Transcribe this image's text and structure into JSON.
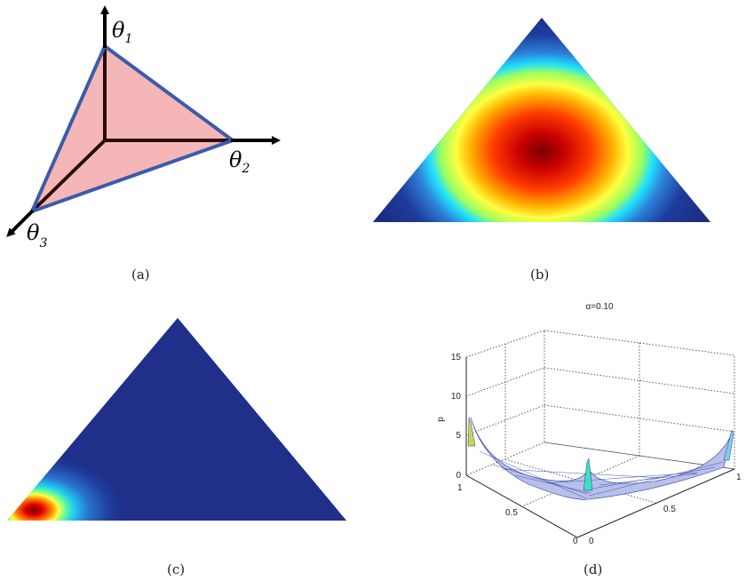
{
  "panels": {
    "a": {
      "caption": "(a)",
      "axes": {
        "theta1": {
          "symbol": "θ",
          "sub": "1"
        },
        "theta2": {
          "symbol": "θ",
          "sub": "2"
        },
        "theta3": {
          "symbol": "θ",
          "sub": "3"
        }
      },
      "colors": {
        "simplex_fill": "#f4b6b6",
        "simplex_edge": "#3b5bab",
        "axis": "#000000"
      }
    },
    "b": {
      "caption": "(b)"
    },
    "c": {
      "caption": "(c)"
    },
    "d": {
      "caption": "(d)",
      "title": "α=0.10",
      "zlabel": "p",
      "z_ticks": [
        "0",
        "5",
        "10",
        "15"
      ],
      "x_ticks": [
        "0",
        "0.5",
        "1"
      ],
      "y_ticks": [
        "0",
        "0.5",
        "1"
      ]
    }
  }
}
